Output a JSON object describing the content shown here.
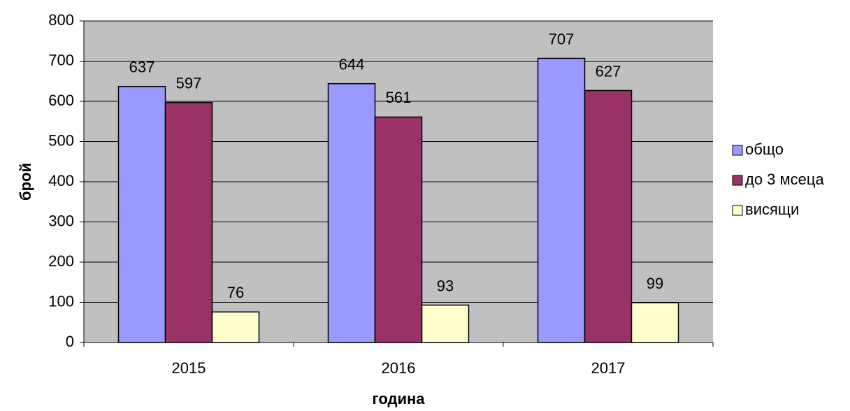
{
  "chart_data": {
    "type": "bar",
    "categories": [
      "2015",
      "2016",
      "2017"
    ],
    "series": [
      {
        "name": "общо",
        "color": "#9999ff",
        "values": [
          637,
          644,
          707
        ]
      },
      {
        "name": "до 3 мсеца",
        "color": "#993366",
        "values": [
          597,
          561,
          627
        ]
      },
      {
        "name": "висящи",
        "color": "#ffffcc",
        "values": [
          76,
          93,
          99
        ]
      }
    ],
    "ylim": [
      0,
      800
    ],
    "yticks": [
      0,
      100,
      200,
      300,
      400,
      500,
      600,
      700,
      800
    ],
    "grid": true,
    "legend": "right",
    "xlabel": "година",
    "ylabel": "брой"
  }
}
